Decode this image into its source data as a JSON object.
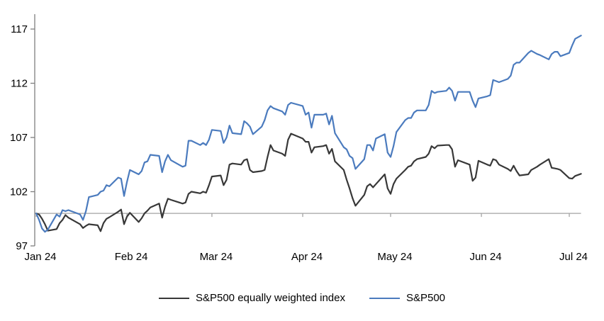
{
  "chart_data": {
    "type": "line",
    "title": "",
    "xlabel": "",
    "ylabel": "",
    "ylim": [
      97,
      117
    ],
    "yticks": [
      97,
      102,
      107,
      112,
      117
    ],
    "baseline_value": 100,
    "grid": "single horizontal baseline at 100",
    "legend_position": "bottom-center",
    "x_axis": {
      "tick_labels": [
        "Jan 24",
        "Feb 24",
        "Mar 24",
        "Apr 24",
        "May 24",
        "Jun 24",
        "Jul 24"
      ],
      "tick_days": [
        0,
        31,
        60,
        91,
        121,
        152,
        182
      ]
    },
    "days": [
      0,
      1,
      2,
      3,
      4,
      7,
      8,
      9,
      10,
      11,
      15,
      16,
      17,
      18,
      21,
      22,
      23,
      24,
      25,
      28,
      29,
      30,
      31,
      32,
      35,
      36,
      37,
      38,
      39,
      42,
      43,
      44,
      45,
      46,
      50,
      51,
      52,
      53,
      56,
      57,
      58,
      59,
      60,
      63,
      64,
      65,
      66,
      67,
      70,
      71,
      72,
      73,
      74,
      77,
      78,
      79,
      80,
      81,
      84,
      85,
      86,
      87,
      91,
      92,
      93,
      94,
      95,
      98,
      99,
      100,
      101,
      102,
      105,
      106,
      107,
      108,
      109,
      112,
      113,
      114,
      115,
      116,
      119,
      120,
      121,
      122,
      123,
      126,
      127,
      128,
      129,
      130,
      133,
      134,
      135,
      136,
      137,
      140,
      141,
      142,
      143,
      144,
      148,
      149,
      150,
      151,
      154,
      155,
      156,
      157,
      158,
      161,
      162,
      163,
      164,
      165,
      168,
      169,
      171,
      172,
      175,
      176,
      177,
      178,
      179,
      182,
      183,
      184,
      186
    ],
    "series": [
      {
        "name": "S&P500 equally weighted index",
        "color": "#383838",
        "values": [
          100,
          99.9,
          99.5,
          99.0,
          98.4,
          98.55,
          99.1,
          99.4,
          99.85,
          99.6,
          99.0,
          98.65,
          98.85,
          99.0,
          98.9,
          98.35,
          99.1,
          99.5,
          99.65,
          100.15,
          100.35,
          99.0,
          99.7,
          100.05,
          99.2,
          99.55,
          100.0,
          100.25,
          100.55,
          100.9,
          99.6,
          100.6,
          101.35,
          101.25,
          100.9,
          101.0,
          101.8,
          102.0,
          101.85,
          102.0,
          101.9,
          102.6,
          103.4,
          103.5,
          102.6,
          103.1,
          104.5,
          104.6,
          104.5,
          104.9,
          105.0,
          104.0,
          103.8,
          103.9,
          104.0,
          105.2,
          106.3,
          105.8,
          105.5,
          105.3,
          106.8,
          107.35,
          106.9,
          106.6,
          106.6,
          105.6,
          106.1,
          106.2,
          106.3,
          105.5,
          105.95,
          104.8,
          104.0,
          103.1,
          102.3,
          101.4,
          100.7,
          101.7,
          102.5,
          102.7,
          102.4,
          102.7,
          103.6,
          102.3,
          101.8,
          102.7,
          103.2,
          104.0,
          104.3,
          104.4,
          104.8,
          105.0,
          105.2,
          105.5,
          106.2,
          106.0,
          106.25,
          106.3,
          106.3,
          105.9,
          104.3,
          104.9,
          104.5,
          103.0,
          103.3,
          104.85,
          104.5,
          104.4,
          105.0,
          104.9,
          104.5,
          104.1,
          103.9,
          104.4,
          103.9,
          103.5,
          103.6,
          104.0,
          104.3,
          104.5,
          105.0,
          104.2,
          104.15,
          104.1,
          104.0,
          103.25,
          103.2,
          103.45,
          103.65
        ]
      },
      {
        "name": "S&P500",
        "color": "#4b7bbe",
        "values": [
          100,
          99.4,
          98.6,
          98.3,
          98.5,
          99.9,
          99.7,
          100.3,
          100.2,
          100.3,
          99.9,
          99.4,
          100.2,
          101.5,
          101.7,
          102.0,
          102.1,
          102.6,
          102.5,
          103.3,
          103.2,
          101.6,
          102.9,
          104.0,
          103.6,
          103.9,
          104.7,
          104.8,
          105.4,
          105.3,
          103.8,
          104.8,
          105.4,
          104.9,
          104.3,
          104.4,
          106.7,
          106.7,
          106.3,
          106.5,
          106.3,
          106.8,
          107.7,
          107.6,
          106.5,
          107.0,
          108.1,
          107.4,
          107.3,
          108.5,
          108.3,
          108.0,
          107.3,
          108.0,
          108.6,
          109.5,
          109.9,
          109.7,
          109.4,
          109.1,
          110.0,
          110.2,
          109.9,
          109.1,
          109.3,
          107.9,
          109.1,
          109.1,
          109.2,
          108.2,
          109.0,
          107.4,
          106.1,
          105.9,
          105.3,
          105.1,
          104.1,
          105.0,
          106.3,
          106.3,
          105.8,
          106.9,
          107.3,
          105.6,
          105.2,
          106.2,
          107.5,
          108.6,
          108.8,
          108.8,
          109.3,
          109.5,
          109.5,
          110.0,
          111.3,
          111.1,
          111.2,
          111.3,
          111.6,
          111.3,
          110.4,
          111.2,
          111.2,
          110.4,
          109.8,
          110.6,
          110.8,
          110.9,
          112.3,
          112.2,
          112.1,
          112.4,
          112.7,
          113.7,
          113.9,
          113.9,
          114.8,
          115.0,
          114.7,
          114.6,
          114.2,
          114.7,
          114.9,
          114.9,
          114.5,
          114.8,
          115.5,
          116.1,
          116.4
        ]
      }
    ]
  }
}
